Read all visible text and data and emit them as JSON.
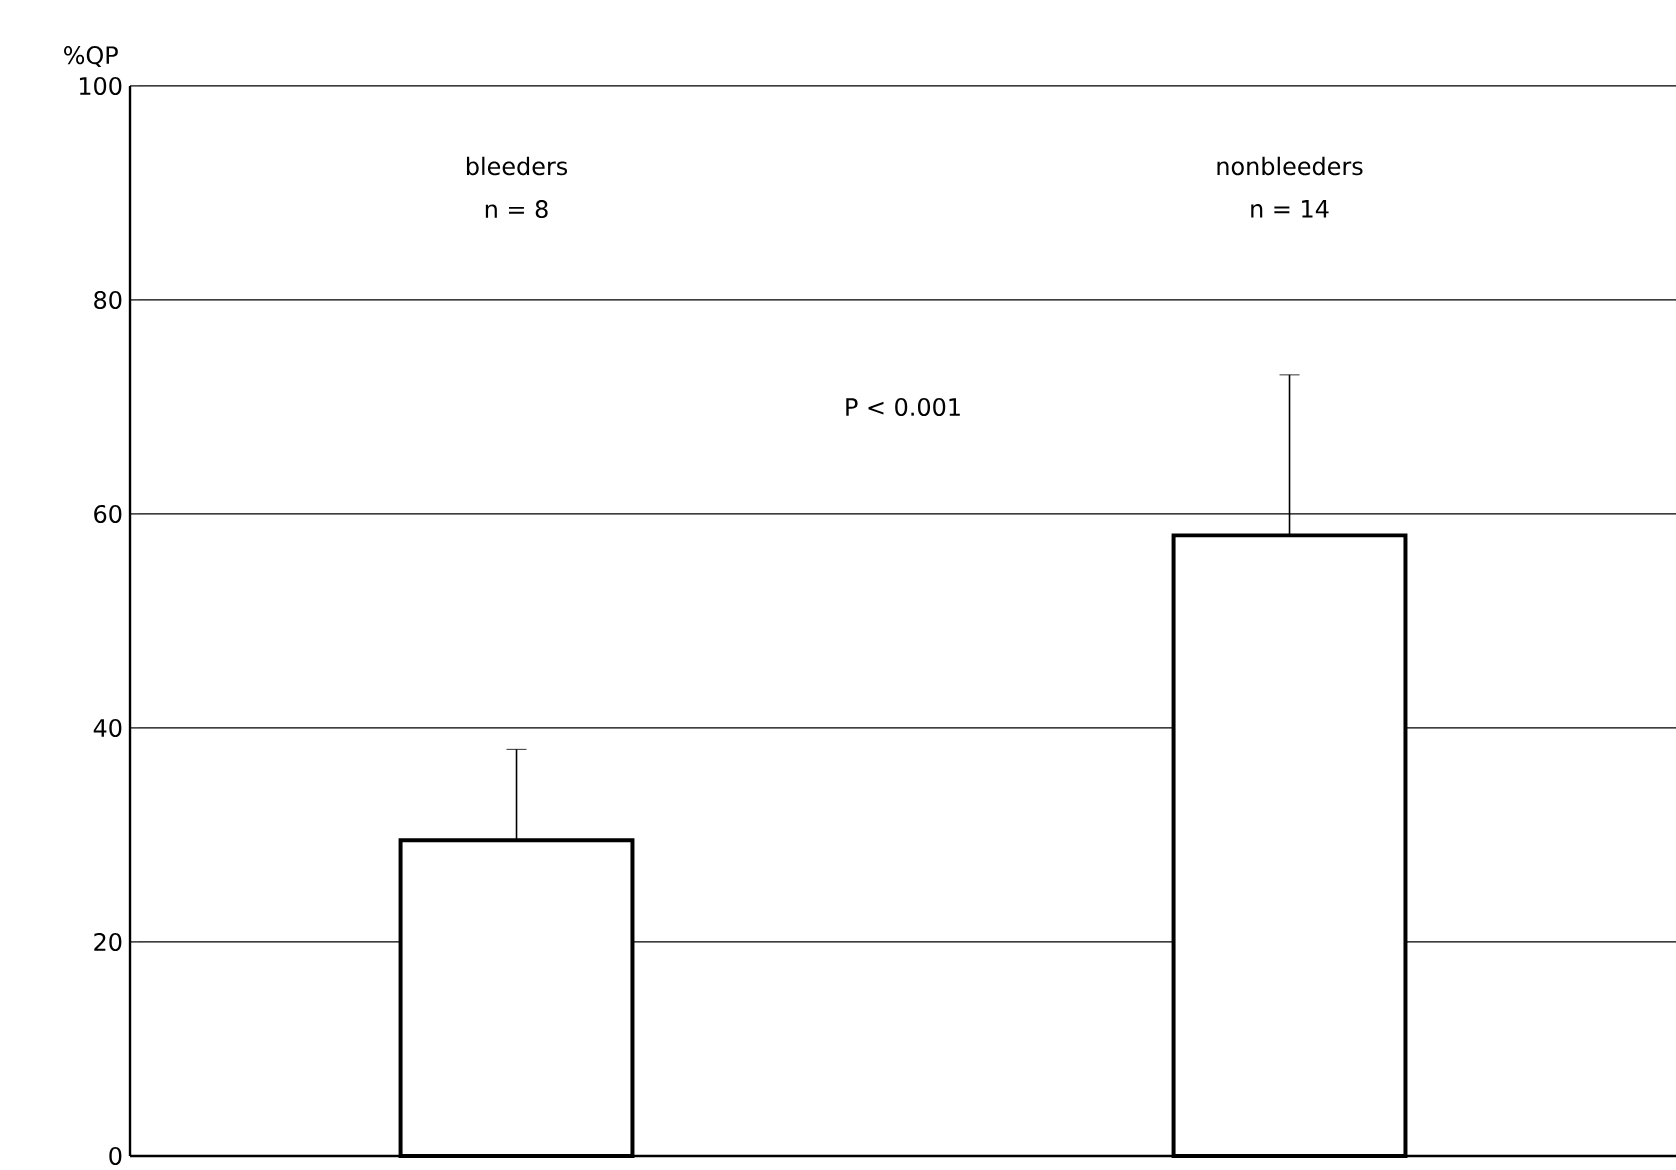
{
  "chart_data": {
    "type": "bar",
    "ylabel": "%QP",
    "categories": [
      "bleeders",
      "nonbleeders"
    ],
    "values": [
      29.5,
      58
    ],
    "errors": [
      [
        29.5,
        38
      ],
      [
        58,
        73
      ]
    ],
    "color": "#000000",
    "ylim": [
      0,
      100
    ],
    "yticks": [
      0,
      20,
      40,
      60,
      80,
      100
    ],
    "grid": "y",
    "annotations": [
      "n = 8",
      "n = 14",
      "P < 0.001"
    ]
  }
}
